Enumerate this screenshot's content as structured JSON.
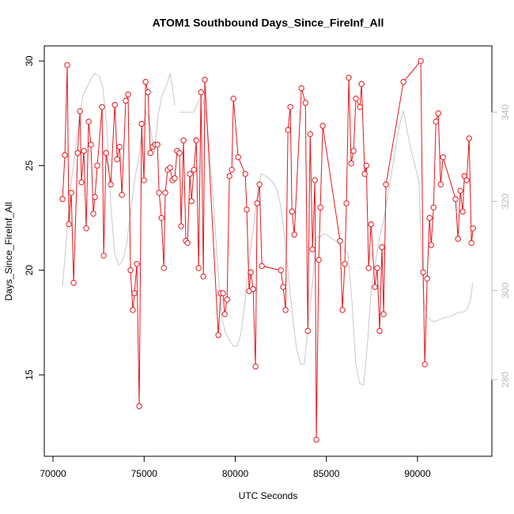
{
  "chart_data": {
    "type": "line",
    "title": "ATOM1 Southbound Days_Since_FireInf_All",
    "xlabel": "UTC Seconds",
    "ylabel": "Days_Since_FireInf_All",
    "xlim": [
      69520,
      94080
    ],
    "xticks": [
      70000,
      75000,
      80000,
      85000,
      90000
    ],
    "ylim": [
      11.11,
      30.72
    ],
    "yticks": [
      15,
      20,
      25,
      30
    ],
    "y2lim": [
      262.8,
      354.9
    ],
    "y2ticks": [
      280,
      300,
      320,
      340
    ],
    "y2color": "#bbbbbb",
    "series": [
      {
        "color": "#c8c8c8",
        "axis": "y2",
        "x": [
          70520,
          70780,
          71000,
          71210,
          71430,
          71650,
          71870,
          72080,
          72300,
          72520,
          72730,
          72950,
          73170,
          73380,
          73600,
          73820,
          74030,
          74250,
          74470,
          74690,
          74900,
          75120,
          75340,
          75550,
          75770,
          75990,
          76200,
          76420,
          76550,
          76680,
          76800,
          76940,
          77720,
          77940,
          78160,
          78370,
          78590,
          78810,
          79020,
          79240,
          79460,
          79670,
          79890,
          80110,
          80320,
          80540,
          80760,
          80980,
          81190,
          81410,
          81630,
          81840,
          82060,
          82280,
          82490,
          82710,
          82930,
          83140,
          83360,
          83580,
          83790,
          84010,
          84230,
          84450,
          84660,
          84880,
          85100,
          85310,
          85530,
          85750,
          85960,
          86180,
          86400,
          86610,
          86830,
          87050,
          87270,
          87480,
          87700,
          87920,
          88130,
          88350,
          88570,
          88780,
          89000,
          89220,
          89430,
          89650,
          89870,
          90080,
          90210,
          90350,
          90520,
          90740,
          90950,
          91390,
          91820,
          92250,
          92470,
          92690,
          92900,
          93030
        ],
        "values": [
          300.8,
          313.7,
          324.4,
          330.6,
          338.6,
          343.9,
          345.7,
          347.5,
          348.7,
          348.3,
          345.7,
          336.8,
          319.1,
          308.4,
          305.7,
          306.6,
          310.2,
          317.3,
          324.4,
          329.7,
          335.9,
          340.4,
          336.8,
          330.6,
          339.5,
          343.9,
          345.7,
          348.7,
          345.7,
          341.6,
          null,
          340.0,
          340.0,
          342.1,
          343.9,
          340.4,
          331.5,
          319.1,
          306.6,
          294.2,
          290.6,
          288.9,
          287.5,
          287.5,
          290.6,
          297.7,
          306.6,
          313.7,
          320.8,
          326.2,
          325.8,
          325.1,
          324.4,
          322.6,
          319.1,
          312.0,
          303.1,
          294.2,
          287.1,
          283.5,
          283.5,
          292.4,
          301.3,
          312.0,
          312.0,
          312.8,
          312.3,
          311.6,
          311.1,
          310.2,
          309.3,
          308.4,
          297.7,
          283.5,
          279.1,
          278.8,
          288.9,
          301.3,
          306.6,
          312.0,
          315.5,
          320.8,
          326.2,
          331.5,
          336.8,
          340.4,
          335.9,
          331.5,
          327.9,
          324.4,
          310.2,
          297.7,
          294.2,
          293.3,
          293.0,
          293.8,
          294.2,
          295.1,
          295.1,
          295.6,
          297.7,
          301.7
        ]
      },
      {
        "color": "#e8161c",
        "marker": "circle",
        "x": [
          70520,
          70650,
          70780,
          70870,
          71000,
          71130,
          71350,
          71480,
          71560,
          71690,
          71820,
          71950,
          72080,
          72210,
          72300,
          72430,
          72690,
          72780,
          72910,
          73170,
          73390,
          73520,
          73650,
          73780,
          73990,
          74120,
          74250,
          74380,
          74470,
          74600,
          74730,
          74860,
          74990,
          75080,
          75210,
          75340,
          75470,
          75600,
          75730,
          75820,
          75950,
          76080,
          76160,
          76290,
          76420,
          76550,
          76680,
          76810,
          76940,
          77030,
          77160,
          77290,
          77380,
          77510,
          77600,
          77730,
          77860,
          77990,
          78120,
          78250,
          78330,
          79070,
          79200,
          79330,
          79420,
          79550,
          79680,
          79810,
          79900,
          80160,
          80550,
          80630,
          80760,
          80850,
          80980,
          81110,
          81200,
          81330,
          81460,
          82500,
          82630,
          82760,
          82890,
          83020,
          83110,
          83240,
          83630,
          83850,
          83980,
          84110,
          84240,
          84370,
          84450,
          84580,
          84670,
          84800,
          85750,
          85880,
          86010,
          86100,
          86230,
          86360,
          86490,
          86620,
          86840,
          86930,
          87100,
          87190,
          87320,
          87450,
          87660,
          87790,
          87920,
          88050,
          88140,
          88270,
          89230,
          90180,
          90310,
          90400,
          90530,
          90660,
          90750,
          90880,
          91010,
          91140,
          91270,
          91400,
          92090,
          92220,
          92350,
          92480,
          92570,
          92700,
          92830,
          92960,
          93050
        ],
        "values": [
          23.4,
          25.5,
          29.8,
          22.2,
          23.7,
          19.4,
          25.6,
          27.6,
          24.2,
          25.7,
          22.0,
          27.1,
          26.0,
          22.7,
          23.5,
          25.0,
          27.8,
          20.7,
          25.6,
          24.1,
          27.9,
          25.3,
          25.9,
          23.6,
          28.1,
          28.4,
          20.0,
          18.1,
          18.9,
          20.3,
          13.5,
          27.0,
          24.3,
          29.0,
          28.5,
          25.6,
          25.9,
          26.0,
          26.0,
          23.7,
          22.5,
          20.1,
          23.7,
          24.8,
          24.9,
          24.3,
          24.4,
          25.7,
          25.6,
          22.1,
          26.2,
          21.4,
          21.3,
          24.6,
          23.3,
          24.8,
          26.2,
          20.1,
          28.5,
          19.7,
          29.1,
          16.9,
          18.9,
          18.9,
          17.9,
          18.6,
          24.5,
          24.8,
          28.2,
          25.4,
          24.6,
          22.9,
          19.0,
          19.9,
          19.1,
          15.4,
          23.2,
          24.1,
          20.2,
          20.0,
          19.2,
          18.1,
          26.7,
          27.8,
          22.8,
          21.7,
          28.7,
          28.0,
          17.1,
          26.5,
          21.0,
          24.3,
          11.9,
          20.5,
          23.0,
          26.9,
          21.4,
          18.1,
          20.3,
          23.2,
          29.2,
          25.1,
          25.7,
          28.2,
          27.8,
          28.9,
          24.6,
          25.0,
          20.1,
          22.2,
          19.2,
          20.1,
          17.1,
          21.1,
          17.9,
          24.1,
          29.0,
          30.0,
          19.9,
          15.5,
          19.6,
          22.5,
          21.2,
          23.0,
          27.1,
          27.5,
          24.1,
          25.4,
          23.4,
          21.5,
          23.8,
          22.8,
          24.5,
          24.3,
          26.3,
          21.3,
          22.0
        ]
      }
    ]
  }
}
